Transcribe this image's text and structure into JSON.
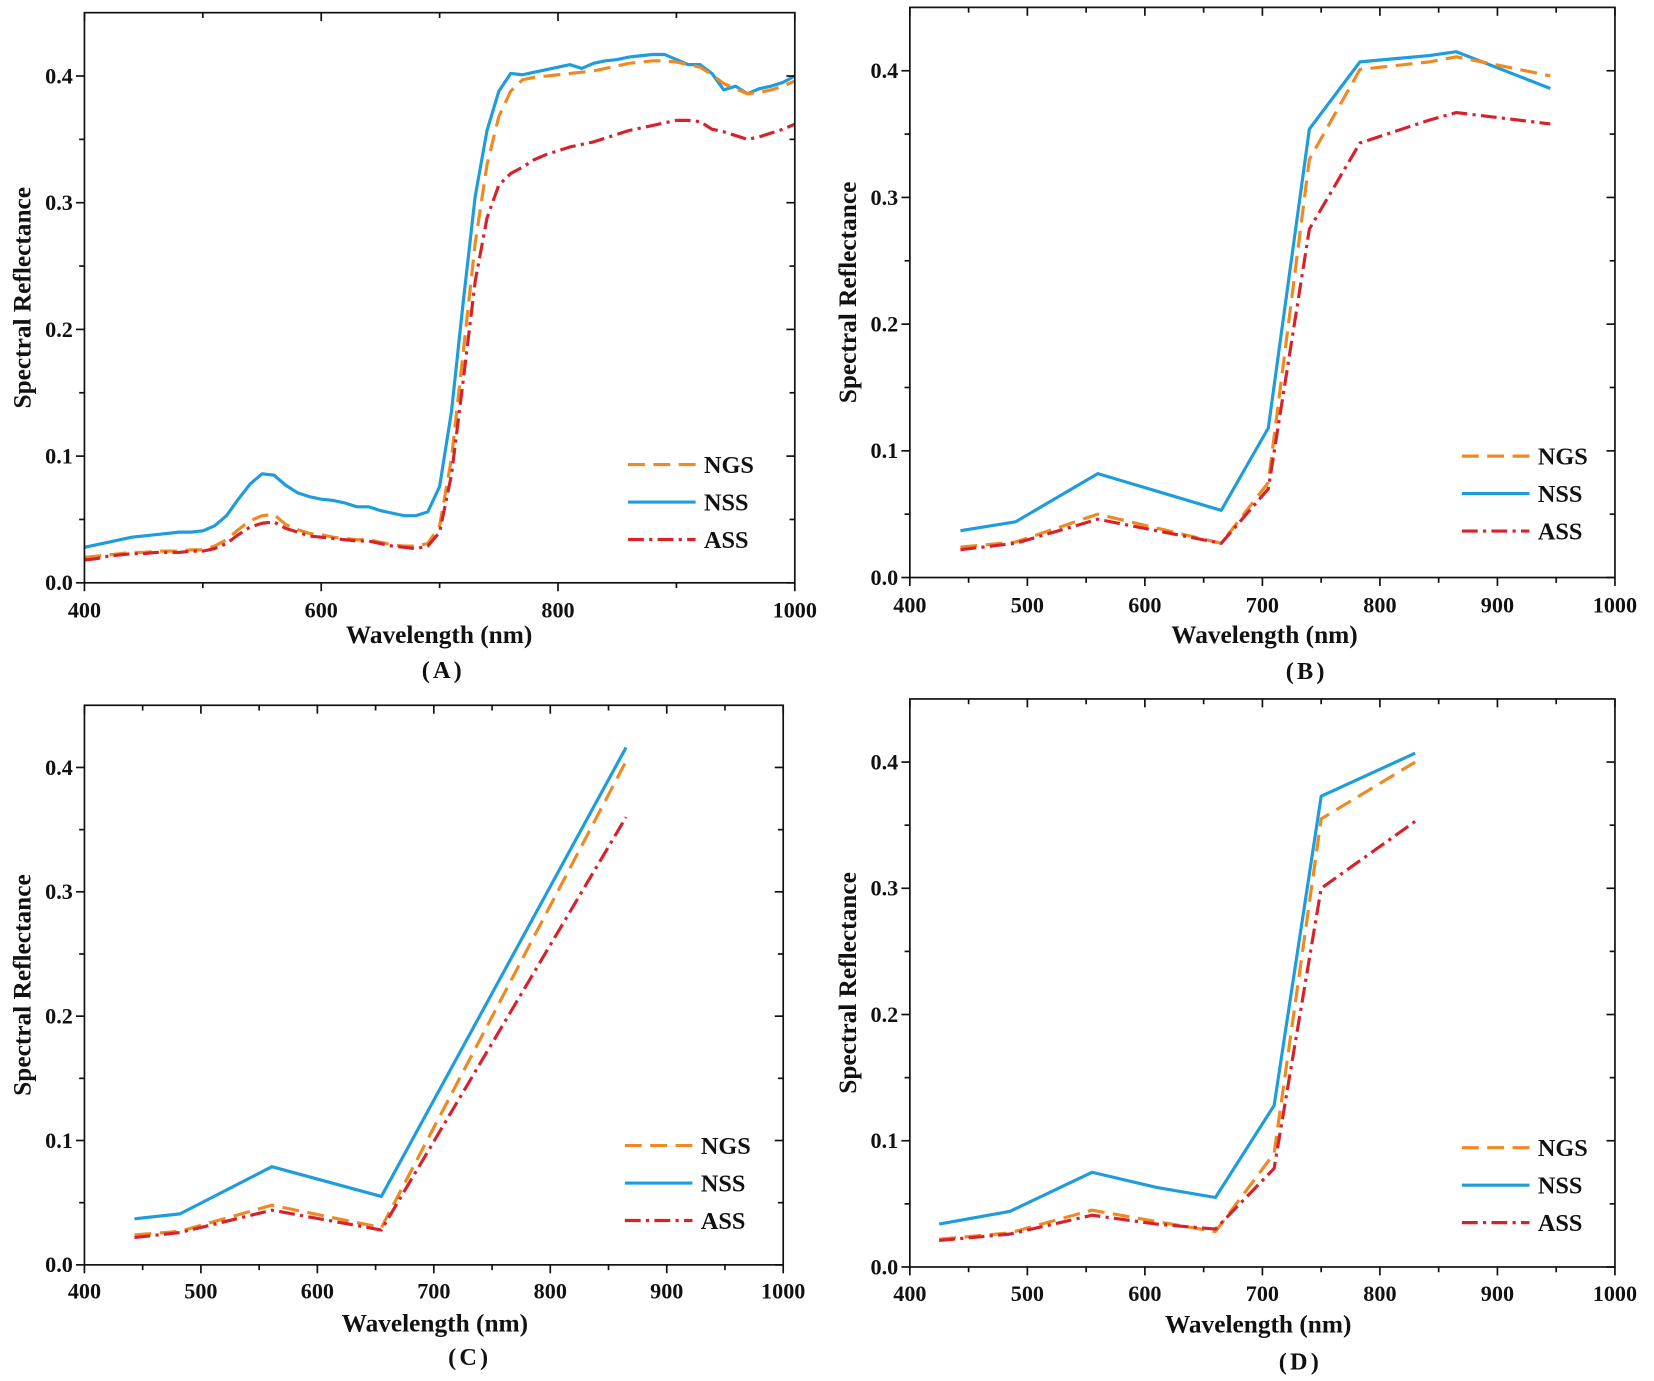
{
  "chart_data": [
    {
      "panel_label": "(A)",
      "type": "line",
      "xlabel": "Wavelength (nm)",
      "ylabel": "Spectral Reflectance",
      "xlim": [
        400,
        1000
      ],
      "ylim": [
        0,
        0.45
      ],
      "xticks": [
        400,
        600,
        800,
        1000
      ],
      "xtick_labels": [
        "400",
        "600",
        "800",
        "1000"
      ],
      "yticks": [
        0,
        0.1,
        0.2,
        0.3,
        0.4
      ],
      "ytick_labels": [
        "0.0",
        "0.1",
        "0.2",
        "0.3",
        "0.4"
      ],
      "grid": false,
      "legend_position": "bottom-right",
      "x": [
        400,
        410,
        420,
        430,
        440,
        450,
        460,
        470,
        480,
        490,
        500,
        510,
        520,
        530,
        540,
        550,
        560,
        570,
        580,
        590,
        600,
        610,
        620,
        630,
        640,
        650,
        660,
        670,
        680,
        690,
        700,
        710,
        720,
        730,
        740,
        750,
        760,
        770,
        780,
        790,
        800,
        810,
        820,
        830,
        840,
        850,
        860,
        870,
        880,
        890,
        900,
        910,
        920,
        930,
        940,
        950,
        960,
        970,
        980,
        990,
        1000
      ],
      "series": [
        {
          "name": "NGS",
          "color": "#EF8A22",
          "values": [
            0.02,
            0.021,
            0.022,
            0.023,
            0.024,
            0.024,
            0.025,
            0.025,
            0.025,
            0.026,
            0.026,
            0.029,
            0.034,
            0.042,
            0.049,
            0.053,
            0.054,
            0.046,
            0.042,
            0.039,
            0.038,
            0.036,
            0.035,
            0.034,
            0.034,
            0.032,
            0.03,
            0.029,
            0.029,
            0.031,
            0.045,
            0.098,
            0.182,
            0.268,
            0.33,
            0.368,
            0.388,
            0.397,
            0.399,
            0.4,
            0.401,
            0.402,
            0.403,
            0.404,
            0.406,
            0.408,
            0.41,
            0.411,
            0.412,
            0.412,
            0.411,
            0.409,
            0.407,
            0.401,
            0.394,
            0.39,
            0.386,
            0.387,
            0.389,
            0.392,
            0.396
          ]
        },
        {
          "name": "NSS",
          "color": "#1E9CDC",
          "values": [
            0.028,
            0.03,
            0.032,
            0.034,
            0.036,
            0.037,
            0.038,
            0.039,
            0.04,
            0.04,
            0.041,
            0.045,
            0.053,
            0.066,
            0.078,
            0.086,
            0.085,
            0.077,
            0.071,
            0.068,
            0.066,
            0.065,
            0.063,
            0.06,
            0.06,
            0.057,
            0.055,
            0.053,
            0.053,
            0.056,
            0.076,
            0.135,
            0.222,
            0.305,
            0.357,
            0.388,
            0.402,
            0.401,
            0.403,
            0.405,
            0.407,
            0.409,
            0.406,
            0.41,
            0.412,
            0.413,
            0.415,
            0.416,
            0.417,
            0.417,
            0.413,
            0.409,
            0.409,
            0.402,
            0.389,
            0.392,
            0.386,
            0.39,
            0.392,
            0.395,
            0.4
          ]
        },
        {
          "name": "ASS",
          "color": "#D6232B",
          "values": [
            0.018,
            0.019,
            0.021,
            0.022,
            0.023,
            0.023,
            0.024,
            0.024,
            0.024,
            0.025,
            0.025,
            0.027,
            0.031,
            0.038,
            0.044,
            0.047,
            0.048,
            0.043,
            0.04,
            0.037,
            0.036,
            0.035,
            0.034,
            0.033,
            0.033,
            0.031,
            0.029,
            0.028,
            0.027,
            0.029,
            0.04,
            0.085,
            0.16,
            0.238,
            0.288,
            0.314,
            0.323,
            0.328,
            0.334,
            0.338,
            0.341,
            0.344,
            0.346,
            0.348,
            0.351,
            0.354,
            0.357,
            0.359,
            0.361,
            0.363,
            0.365,
            0.365,
            0.364,
            0.358,
            0.356,
            0.353,
            0.35,
            0.352,
            0.355,
            0.358,
            0.362
          ]
        }
      ]
    },
    {
      "panel_label": "(B)",
      "type": "line",
      "xlabel": "Wavelength (nm)",
      "ylabel": "Spectral Reflectance",
      "xlim": [
        400,
        1000
      ],
      "ylim": [
        0,
        0.45
      ],
      "xticks": [
        400,
        500,
        600,
        700,
        800,
        900,
        1000
      ],
      "xtick_labels": [
        "400",
        "500",
        "600",
        "700",
        "800",
        "900",
        "1000"
      ],
      "yticks": [
        0,
        0.1,
        0.2,
        0.3,
        0.4
      ],
      "ytick_labels": [
        "0.0",
        "0.1",
        "0.2",
        "0.3",
        "0.4"
      ],
      "grid": false,
      "legend_position": "bottom-right",
      "x": [
        443,
        490,
        560,
        665,
        705,
        740,
        783,
        842,
        865,
        945
      ],
      "series": [
        {
          "name": "NGS",
          "color": "#EF8A22",
          "values": [
            0.024,
            0.028,
            0.05,
            0.027,
            0.075,
            0.33,
            0.401,
            0.407,
            0.411,
            0.396
          ]
        },
        {
          "name": "NSS",
          "color": "#1E9CDC",
          "values": [
            0.037,
            0.044,
            0.082,
            0.053,
            0.118,
            0.354,
            0.407,
            0.412,
            0.415,
            0.386
          ]
        },
        {
          "name": "ASS",
          "color": "#D6232B",
          "values": [
            0.022,
            0.027,
            0.046,
            0.027,
            0.07,
            0.275,
            0.343,
            0.361,
            0.367,
            0.358
          ]
        }
      ]
    },
    {
      "panel_label": "(C)",
      "type": "line",
      "xlabel": "Wavelength (nm)",
      "ylabel": "Spectral Reflectance",
      "xlim": [
        400,
        1000
      ],
      "ylim": [
        0,
        0.45
      ],
      "xticks": [
        400,
        500,
        600,
        700,
        800,
        900,
        1000
      ],
      "xtick_labels": [
        "400",
        "500",
        "600",
        "700",
        "800",
        "900",
        "1000"
      ],
      "yticks": [
        0,
        0.1,
        0.2,
        0.3,
        0.4
      ],
      "ytick_labels": [
        "0.0",
        "0.1",
        "0.2",
        "0.3",
        "0.4"
      ],
      "grid": false,
      "legend_position": "bottom-right",
      "x": [
        443,
        482,
        561,
        655,
        865
      ],
      "series": [
        {
          "name": "NGS",
          "color": "#EF8A22",
          "values": [
            0.024,
            0.027,
            0.048,
            0.03,
            0.405
          ]
        },
        {
          "name": "NSS",
          "color": "#1E9CDC",
          "values": [
            0.037,
            0.041,
            0.079,
            0.055,
            0.416
          ]
        },
        {
          "name": "ASS",
          "color": "#D6232B",
          "values": [
            0.022,
            0.026,
            0.044,
            0.028,
            0.36
          ]
        }
      ]
    },
    {
      "panel_label": "(D)",
      "type": "line",
      "xlabel": "Wavelength (nm)",
      "ylabel": "Spectral Reflectance",
      "xlim": [
        400,
        1000
      ],
      "ylim": [
        0,
        0.45
      ],
      "xticks": [
        400,
        500,
        600,
        700,
        800,
        900,
        1000
      ],
      "xtick_labels": [
        "400",
        "500",
        "600",
        "700",
        "800",
        "900",
        "1000"
      ],
      "yticks": [
        0,
        0.1,
        0.2,
        0.3,
        0.4
      ],
      "ytick_labels": [
        "0.0",
        "0.1",
        "0.2",
        "0.3",
        "0.4"
      ],
      "grid": false,
      "legend_position": "bottom-right",
      "x": [
        425,
        485,
        555,
        610,
        660,
        710,
        750,
        830
      ],
      "series": [
        {
          "name": "NGS",
          "color": "#EF8A22",
          "values": [
            0.022,
            0.027,
            0.045,
            0.036,
            0.028,
            0.09,
            0.355,
            0.4
          ]
        },
        {
          "name": "NSS",
          "color": "#1E9CDC",
          "values": [
            0.034,
            0.044,
            0.075,
            0.063,
            0.055,
            0.128,
            0.373,
            0.407
          ]
        },
        {
          "name": "ASS",
          "color": "#D6232B",
          "values": [
            0.021,
            0.026,
            0.041,
            0.034,
            0.03,
            0.078,
            0.3,
            0.353
          ]
        }
      ]
    }
  ]
}
